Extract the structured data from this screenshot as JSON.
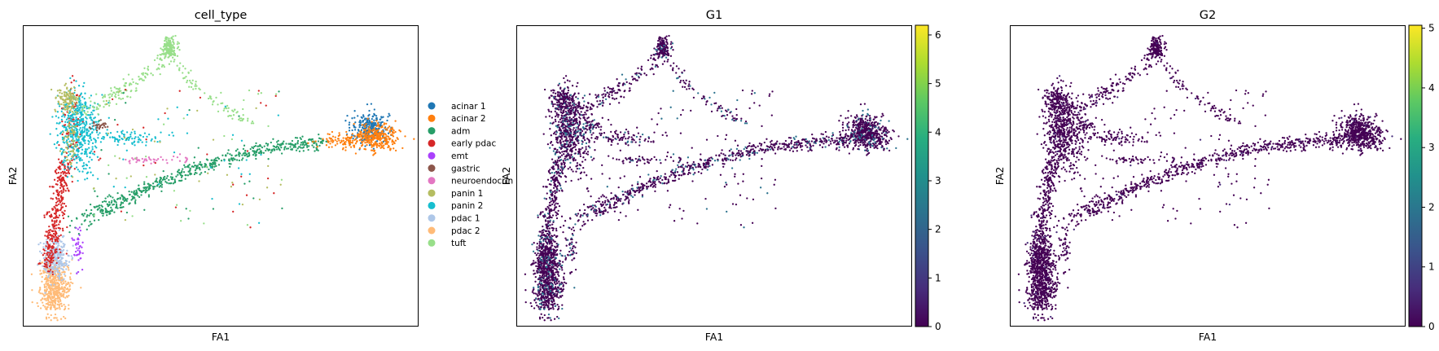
{
  "chart_data": [
    {
      "type": "scatter",
      "title": "cell_type",
      "xlabel": "FA1",
      "ylabel": "FA2",
      "legend": {
        "placement": "right-outside",
        "entries": [
          {
            "name": "acinar 1",
            "color": "#1f77b4"
          },
          {
            "name": "acinar 2",
            "color": "#ff7f0e"
          },
          {
            "name": "adm",
            "color": "#279e68"
          },
          {
            "name": "early pdac",
            "color": "#d62728"
          },
          {
            "name": "emt",
            "color": "#aa40fc"
          },
          {
            "name": "gastric",
            "color": "#8c564b"
          },
          {
            "name": "neuroendocrin",
            "color": "#e377c2"
          },
          {
            "name": "panin 1",
            "color": "#b5bd61"
          },
          {
            "name": "panin 2",
            "color": "#17becf"
          },
          {
            "name": "pdac 1",
            "color": "#aec7e8"
          },
          {
            "name": "pdac 2",
            "color": "#ffbb78"
          },
          {
            "name": "tuft",
            "color": "#98df8a"
          }
        ]
      },
      "grid": false
    },
    {
      "type": "scatter",
      "title": "G1",
      "xlabel": "FA1",
      "ylabel": "FA2",
      "colormap": "viridis",
      "colorbar": {
        "min": 0,
        "max": 6.2,
        "ticks": [
          "0",
          "1",
          "2",
          "3",
          "4",
          "5",
          "6"
        ]
      },
      "value_profile": "mostly 0-1, a few points up to ~3",
      "grid": false
    },
    {
      "type": "scatter",
      "title": "G2",
      "xlabel": "FA1",
      "ylabel": "FA2",
      "colormap": "viridis",
      "colorbar": {
        "min": 0,
        "max": 5.05,
        "ticks": [
          "0",
          "1",
          "2",
          "3",
          "4",
          "5"
        ]
      },
      "value_profile": "nearly all ~0",
      "grid": false
    }
  ]
}
